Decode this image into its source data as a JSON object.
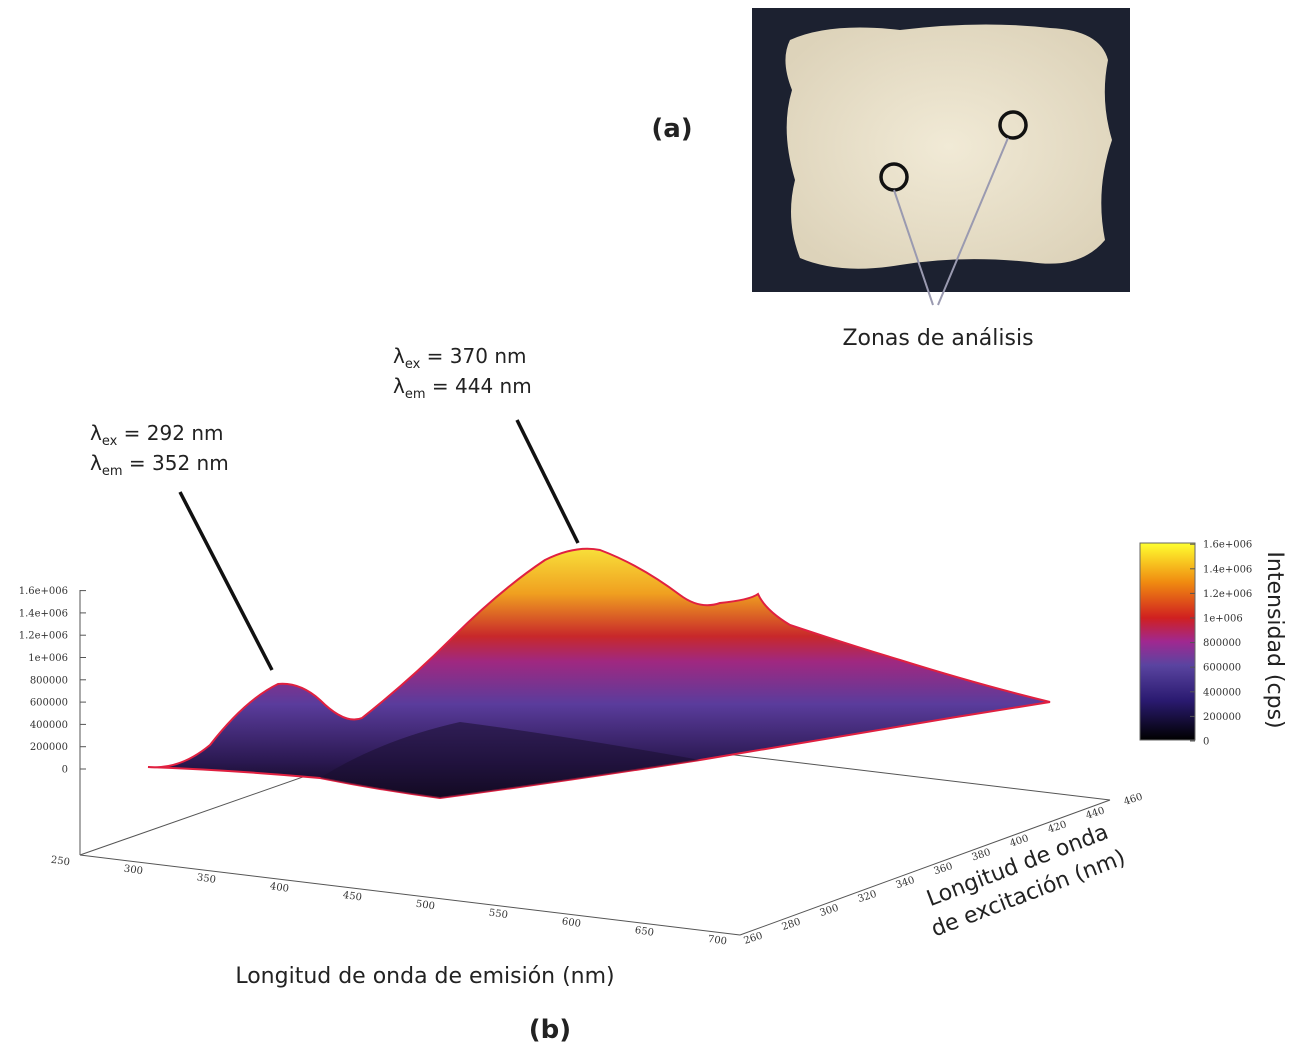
{
  "panel_a": {
    "label": "(a)",
    "caption": "Zonas de análisis"
  },
  "panel_b": {
    "label": "(b)",
    "annotations": [
      {
        "lines": [
          {
            "symbol": "λ",
            "sub": "ex",
            "text": " = 292 nm"
          },
          {
            "symbol": "λ",
            "sub": "em",
            "text": " = 352 nm"
          }
        ]
      },
      {
        "lines": [
          {
            "symbol": "λ",
            "sub": "ex",
            "text": " = 370 nm"
          },
          {
            "symbol": "λ",
            "sub": "em",
            "text": " = 444 nm"
          }
        ]
      }
    ],
    "z_ticks": [
      "0",
      "200000",
      "400000",
      "600000",
      "800000",
      "1e+006",
      "1.2e+006",
      "1.4e+006",
      "1.6e+006"
    ],
    "emission_ticks": [
      "250",
      "300",
      "350",
      "400",
      "450",
      "500",
      "550",
      "600",
      "650",
      "700"
    ],
    "excitation_ticks": [
      "260",
      "280",
      "300",
      "320",
      "340",
      "360",
      "380",
      "400",
      "420",
      "440",
      "460"
    ],
    "emission_title": "Longitud de onda de emisión (nm)",
    "excitation_title": [
      "Longitud de onda",
      "de excitación (nm)"
    ],
    "colorbar_ticks": [
      "0",
      "200000",
      "400000",
      "600000",
      "800000",
      "1e+006",
      "1.2e+006",
      "1.4e+006",
      "1.6e+006"
    ],
    "colorbar_title": "Intensidad (cps)"
  }
}
